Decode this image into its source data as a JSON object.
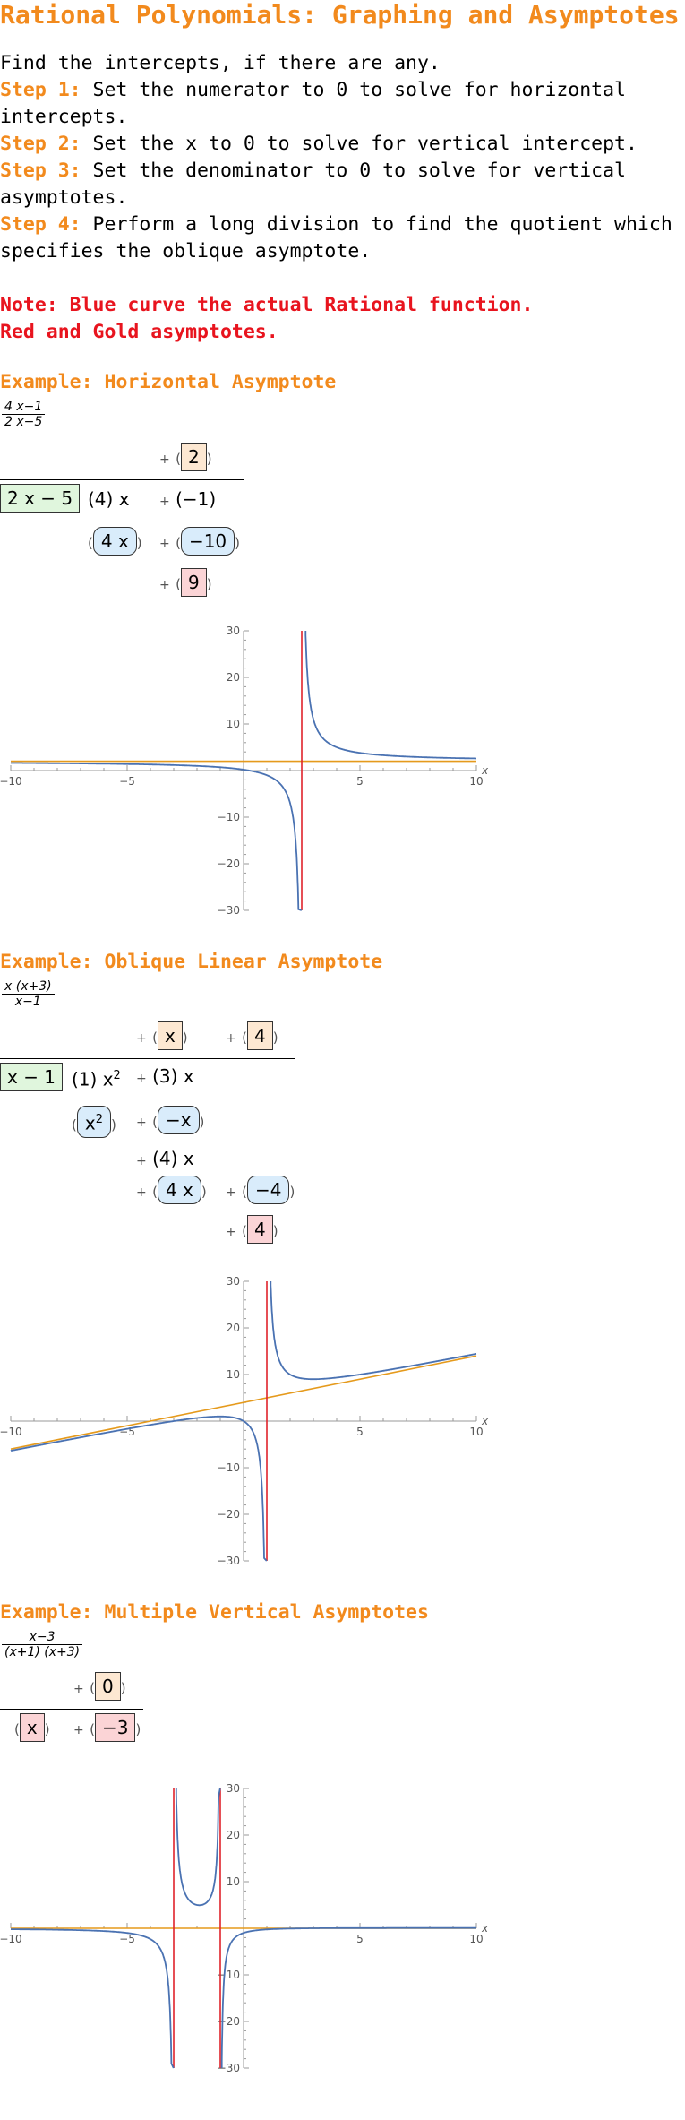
{
  "title": "Rational Polynomials: Graphing and Asymptotes",
  "intro": "Find the intercepts, if there are any.",
  "steps": [
    {
      "label": "Step 1:",
      "text": " Set the numerator to 0 to solve for horizontal",
      "text2": "intercepts."
    },
    {
      "label": "Step 2:",
      "text": " Set the x to 0 to solve for vertical intercept.",
      "text2": ""
    },
    {
      "label": "Step 3:",
      "text": " Set the denominator to 0 to solve for vertical",
      "text2": "asymptotes."
    },
    {
      "label": "Step 4:",
      "text": " Perform a long division to find the quotient which",
      "text2": "specifies the oblique asymptote."
    }
  ],
  "note": [
    "Note: Blue curve the actual Rational function.",
    "Red and Gold asymptotes."
  ],
  "colors": {
    "heading": "#f28a1d",
    "note": "#e8141e",
    "curve": "#4a72b2",
    "vertical_asymptote": "#e0232b",
    "oblique_asymptote": "#e59a1c"
  },
  "examples": [
    {
      "heading": "Example: Horizontal Asymptote",
      "numerator": "4 x−1",
      "denominator": "2 x−5",
      "divisor": "2 x − 5",
      "quotient": [
        "2"
      ],
      "dividend": [
        "(4) x",
        "(−1)"
      ],
      "subtract": [
        "4 x",
        "−10"
      ],
      "remainder": "9",
      "plot": {
        "function": "(4x-1)/(2x-5)",
        "vertical": [
          2.5
        ],
        "line": {
          "slope": 0,
          "intercept": 2
        }
      }
    },
    {
      "heading": "Example: Oblique Linear Asymptote",
      "numerator": "x (x+3)",
      "denominator": "x−1",
      "divisor": "x − 1",
      "quotient": [
        "x",
        "4"
      ],
      "dividend": [
        "(1) x",
        "2",
        "(3) x"
      ],
      "subtract1": [
        "x",
        "2",
        "−x"
      ],
      "line2": "(4) x",
      "subtract2": [
        "4 x",
        "−4"
      ],
      "remainder": "4",
      "plot": {
        "function": "x(x+3)/(x-1)",
        "vertical": [
          1
        ],
        "line": {
          "slope": 1,
          "intercept": 4
        }
      }
    },
    {
      "heading": "Example: Multiple Vertical Asymptotes",
      "numerator": "x−3",
      "denominator": "(x+1) (x+3)",
      "quotient": [
        "0"
      ],
      "remainder_terms": [
        "x",
        "−3"
      ],
      "plot": {
        "function": "(x-3)/((x+1)(x+3))",
        "vertical": [
          -3,
          -1
        ],
        "line": {
          "slope": 0,
          "intercept": 0
        }
      }
    }
  ],
  "chart_data": [
    {
      "type": "line",
      "xlim": [
        -10,
        10
      ],
      "ylim": [
        -30,
        30
      ],
      "xlabel": "x",
      "xticks": [
        -10,
        -5,
        5,
        10
      ],
      "yticks": [
        -30,
        -20,
        -10,
        10,
        20,
        30
      ],
      "series": [
        {
          "expr": "(4x-1)/(2x-5)"
        }
      ],
      "vertical_asymptotes": [
        2.5
      ],
      "asymptote_line": {
        "slope": 0,
        "intercept": 2
      }
    },
    {
      "type": "line",
      "xlim": [
        -10,
        10
      ],
      "ylim": [
        -30,
        30
      ],
      "xlabel": "x",
      "xticks": [
        -10,
        -5,
        5,
        10
      ],
      "yticks": [
        -30,
        -20,
        -10,
        10,
        20,
        30
      ],
      "series": [
        {
          "expr": "x(x+3)/(x-1)"
        }
      ],
      "vertical_asymptotes": [
        1
      ],
      "asymptote_line": {
        "slope": 1,
        "intercept": 4
      }
    },
    {
      "type": "line",
      "xlim": [
        -10,
        10
      ],
      "ylim": [
        -30,
        30
      ],
      "xlabel": "x",
      "xticks": [
        -10,
        -5,
        5,
        10
      ],
      "yticks": [
        -30,
        -20,
        -10,
        10,
        20,
        30
      ],
      "series": [
        {
          "expr": "(x-3)/((x+1)(x+3))"
        }
      ],
      "vertical_asymptotes": [
        -3,
        -1
      ],
      "asymptote_line": {
        "slope": 0,
        "intercept": 0
      }
    }
  ]
}
